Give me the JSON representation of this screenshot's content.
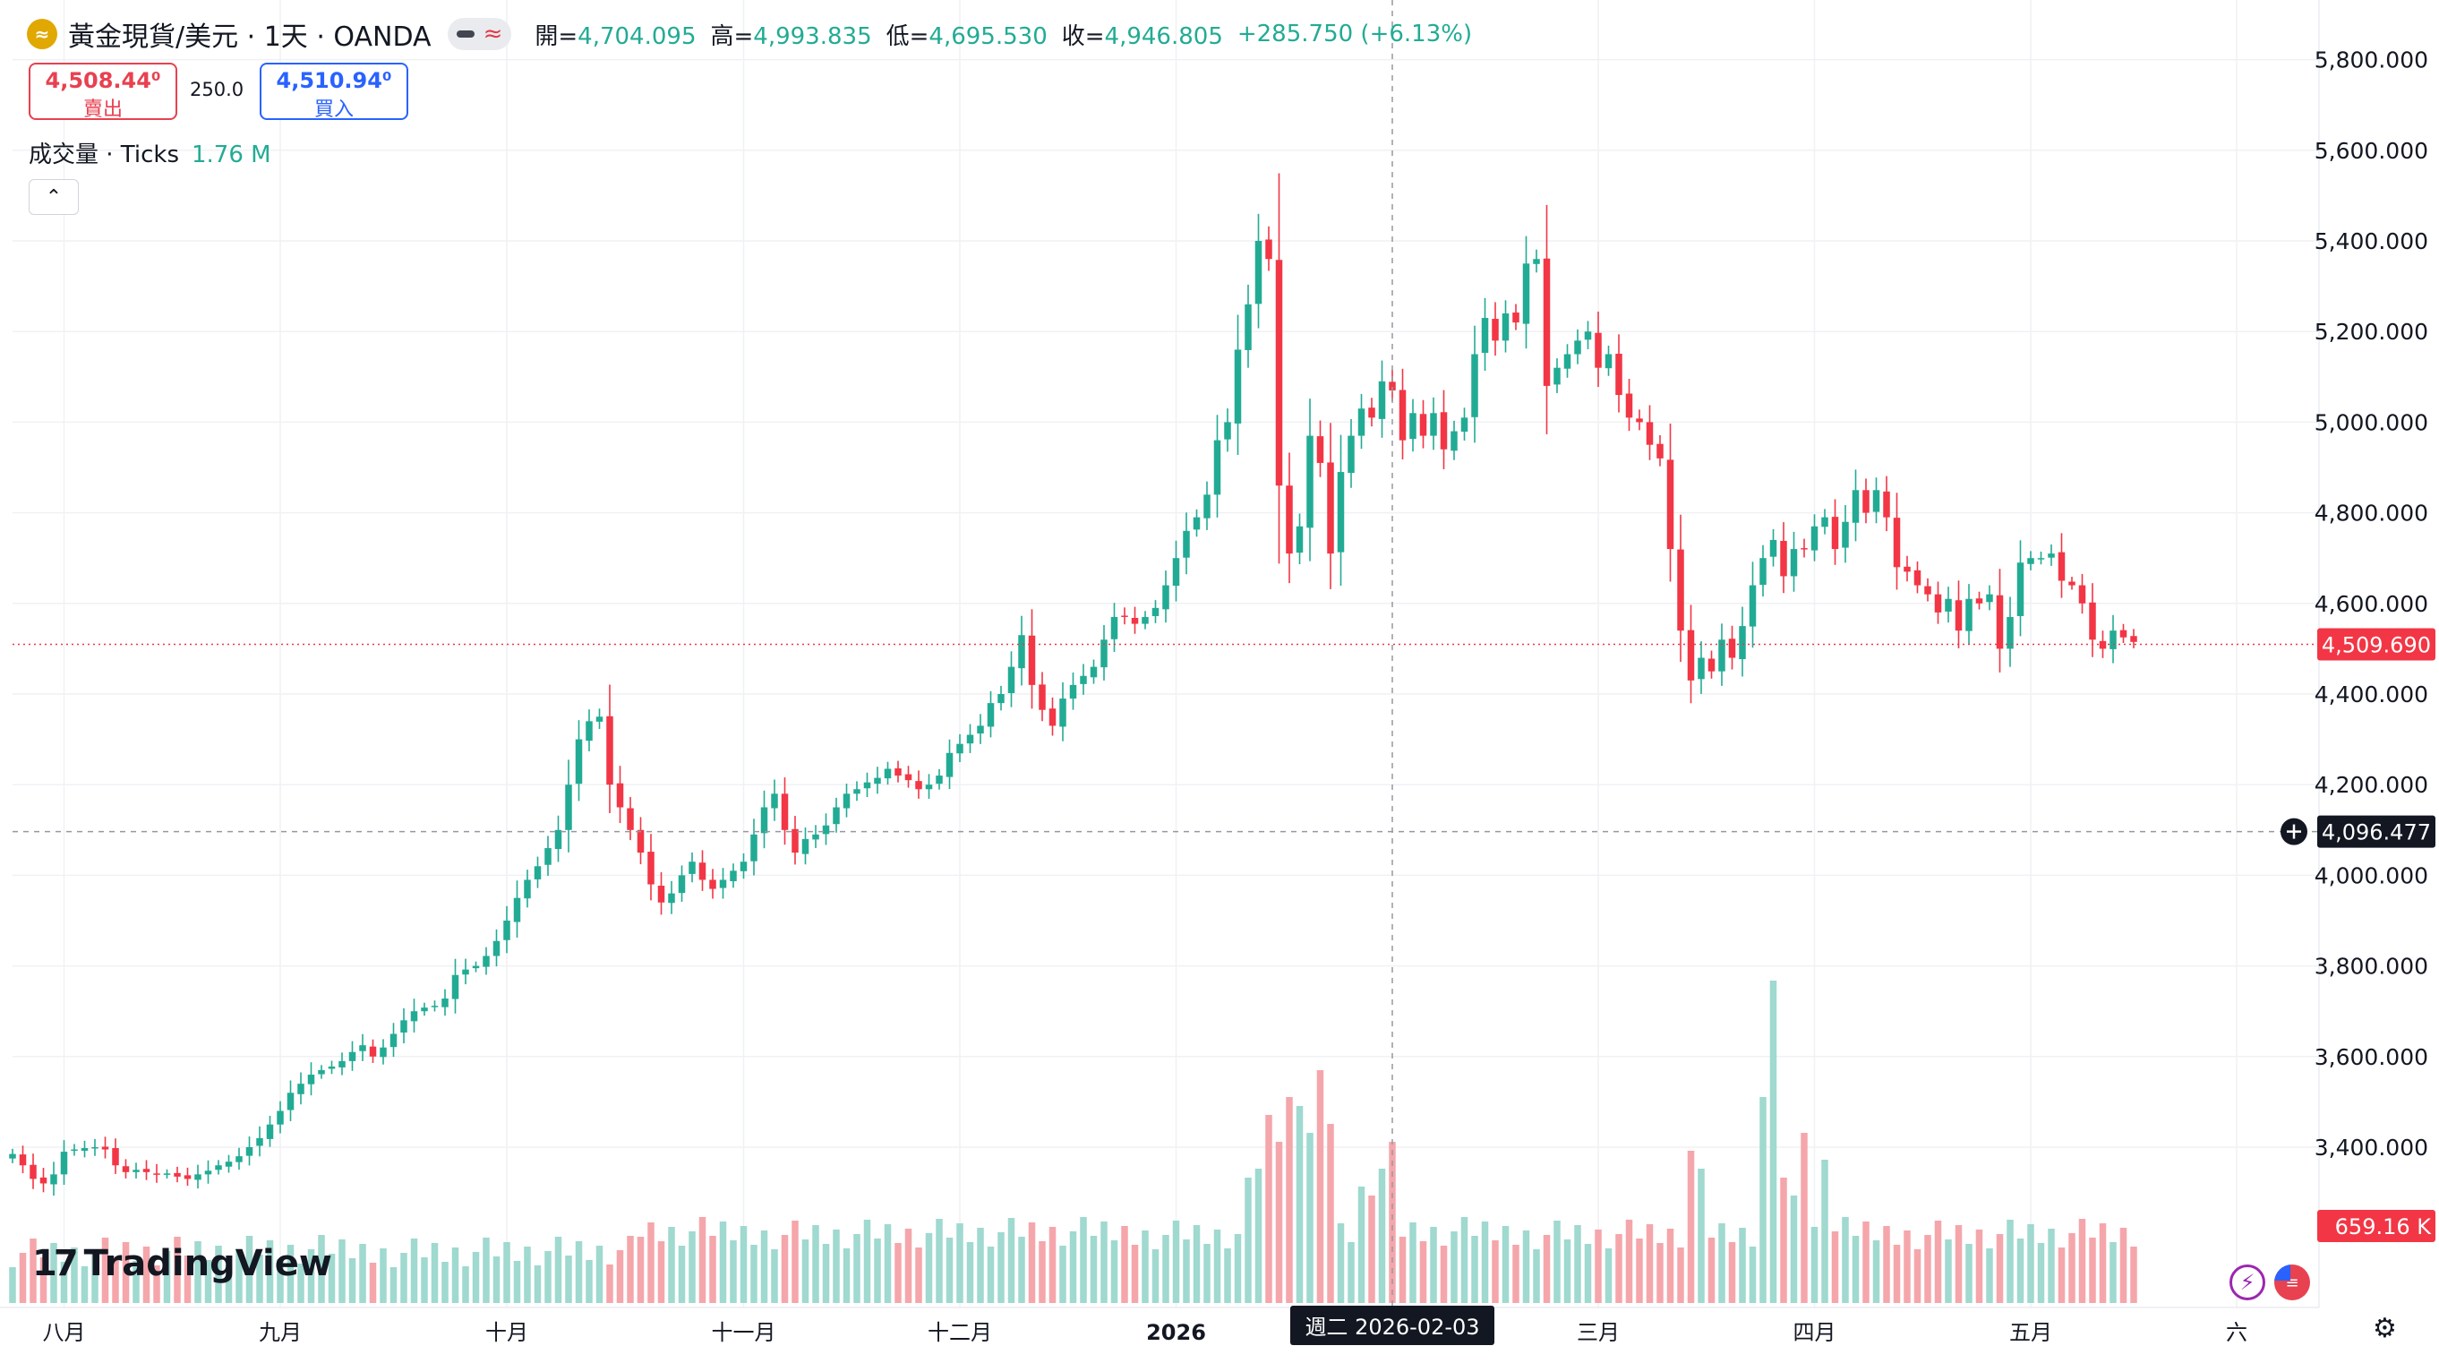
{
  "header": {
    "symbol_icon": "gold-coin-icon",
    "title": "黃金現貨/美元 · 1天 · OANDA",
    "ohlc": [
      {
        "label": "開=",
        "value": "4,704.095"
      },
      {
        "label": "高=",
        "value": "4,993.835"
      },
      {
        "label": "低=",
        "value": "4,695.530"
      },
      {
        "label": "收=",
        "value": "4,946.805"
      }
    ],
    "change": "+285.750 (+6.13%)"
  },
  "trade": {
    "sell_price": "4,508.44⁰",
    "sell_label": "賣出",
    "spread": "250.0",
    "buy_price": "4,510.94⁰",
    "buy_label": "買入"
  },
  "volume_legend": {
    "label": "成交量 · Ticks",
    "value": "1.76 M"
  },
  "crosshair": {
    "date_label": "週二 2026-02-03",
    "price_label": "4,096.477",
    "price": 4096.477
  },
  "last_price": {
    "label": "4,509.690",
    "price": 4509.69
  },
  "last_volume": {
    "label": "659.16 K"
  },
  "logo": {
    "mark": "17",
    "text": "TradingView"
  },
  "colors": {
    "up": "#22ab94",
    "down": "#f23645",
    "up_vol": "#9fd9cf",
    "down_vol": "#f5a6ab",
    "crosshair_bg": "#131722"
  },
  "chart_data": {
    "type": "candlestick",
    "y_axis_ticks": [
      "5,800.000",
      "5,600.000",
      "5,400.000",
      "5,200.000",
      "5,000.000",
      "4,800.000",
      "4,600.000",
      "4,400.000",
      "4,200.000",
      "4,000.000",
      "3,800.000",
      "3,600.000",
      "3,400.000"
    ],
    "y_axis_values": [
      5800,
      5600,
      5400,
      5200,
      5000,
      4800,
      4600,
      4400,
      4200,
      4000,
      3800,
      3600,
      3400
    ],
    "x_axis_labels": [
      {
        "label": "八月",
        "index": 5
      },
      {
        "label": "九月",
        "index": 26
      },
      {
        "label": "十月",
        "index": 48
      },
      {
        "label": "十一月",
        "index": 71
      },
      {
        "label": "十二月",
        "index": 92
      },
      {
        "label": "2026",
        "index": 113
      },
      {
        "label": "三月",
        "index": 154
      },
      {
        "label": "四月",
        "index": 175
      },
      {
        "label": "五月",
        "index": 196
      },
      {
        "label": "六",
        "index": 216
      }
    ],
    "crosshair_index": 134,
    "ylim": [
      3250,
      5850
    ],
    "close": [
      3385,
      3360,
      3330,
      3320,
      3340,
      3390,
      3395,
      3398,
      3400,
      3395,
      3360,
      3345,
      3350,
      3345,
      3340,
      3342,
      3335,
      3330,
      3340,
      3348,
      3360,
      3368,
      3380,
      3400,
      3420,
      3450,
      3480,
      3520,
      3540,
      3560,
      3570,
      3578,
      3590,
      3610,
      3625,
      3600,
      3620,
      3650,
      3680,
      3700,
      3708,
      3712,
      3728,
      3780,
      3792,
      3800,
      3822,
      3855,
      3900,
      3950,
      3990,
      4020,
      4060,
      4100,
      4200,
      4300,
      4340,
      4350,
      4200,
      4150,
      4100,
      4050,
      3980,
      3940,
      3960,
      4000,
      4030,
      3990,
      3970,
      3990,
      4010,
      4030,
      4090,
      4150,
      4180,
      4100,
      4050,
      4080,
      4090,
      4110,
      4150,
      4180,
      4190,
      4205,
      4215,
      4235,
      4220,
      4210,
      4190,
      4200,
      4220,
      4270,
      4290,
      4310,
      4330,
      4380,
      4400,
      4460,
      4530,
      4420,
      4365,
      4330,
      4390,
      4420,
      4440,
      4460,
      4520,
      4570,
      4570,
      4555,
      4570,
      4590,
      4640,
      4700,
      4760,
      4790,
      4840,
      4960,
      5000,
      5160,
      5260,
      5400,
      5360,
      4860,
      4710,
      4770,
      4970,
      4910,
      4710,
      4890,
      4970,
      5030,
      5010,
      5090,
      5070,
      4960,
      5020,
      4970,
      5020,
      4940,
      4980,
      5010,
      5150,
      5230,
      5180,
      5240,
      5220,
      5350,
      5360,
      5080,
      5120,
      5150,
      5180,
      5200,
      5120,
      5150,
      5060,
      5010,
      5000,
      4950,
      4920,
      4720,
      4540,
      4430,
      4480,
      4450,
      4520,
      4480,
      4550,
      4640,
      4700,
      4740,
      4660,
      4720,
      4720,
      4770,
      4790,
      4720,
      4780,
      4850,
      4800,
      4850,
      4790,
      4680,
      4670,
      4640,
      4620,
      4580,
      4610,
      4540,
      4610,
      4600,
      4620,
      4500,
      4570,
      4690,
      4700,
      4700,
      4710,
      4650,
      4640,
      4600,
      4520,
      4500,
      4540,
      4525,
      4515
    ]
  }
}
